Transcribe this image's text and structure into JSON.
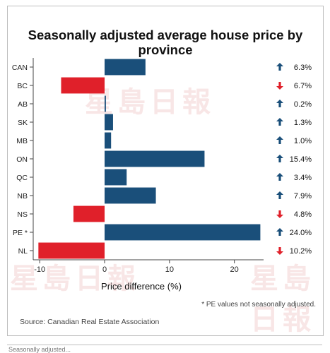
{
  "watermark": "星島日報",
  "chart_data": {
    "type": "bar",
    "orientation": "horizontal",
    "title": "Seasonally adjusted average house price by province",
    "title_lines": [
      "Seasonally adjusted average house price by",
      "province"
    ],
    "xlabel": "Price difference (%)",
    "ylabel": "",
    "xlim": [
      -11,
      24.5
    ],
    "xticks": [
      -10,
      0,
      10,
      20
    ],
    "categories": [
      "CAN",
      "BC",
      "AB",
      "SK",
      "MB",
      "ON",
      "QC",
      "NB",
      "NS",
      "PE *",
      "NL"
    ],
    "values": [
      6.3,
      -6.7,
      0.2,
      1.3,
      1.0,
      15.4,
      3.4,
      7.9,
      -4.8,
      24.0,
      -10.2
    ],
    "value_labels": [
      "6.3%",
      "6.7%",
      "0.2%",
      "1.3%",
      "1.0%",
      "15.4%",
      "3.4%",
      "7.9%",
      "4.8%",
      "24.0%",
      "10.2%"
    ],
    "colors": {
      "positive": "#1a4f7a",
      "negative": "#e0202a",
      "up_arrow": "#1a4f7a",
      "down_arrow": "#e0202a"
    },
    "grid": false,
    "legend": "none",
    "note": "* PE values not seasonally adjusted.",
    "source": "Source: Canadian Real Estate Association"
  },
  "footer_text": "Seasonally adjusted..."
}
